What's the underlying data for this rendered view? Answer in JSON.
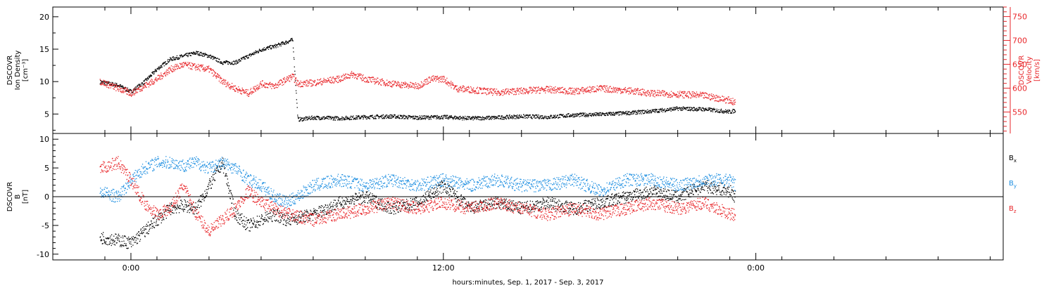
{
  "colors": {
    "black": "#000000",
    "red": "#e8262a",
    "blue": "#1e8fe1"
  },
  "chart_data": [
    {
      "type": "scatter",
      "title": "",
      "x_axis": {
        "label": "hours:minutes, Sep.  1, 2017 - Sep.  3, 2017",
        "unit": "hours since 2017-09-01 00:00",
        "range_hours": [
          -3,
          33.5
        ],
        "tick_labels": [
          {
            "hours": 0,
            "label": "0:00"
          },
          {
            "hours": 12,
            "label": "12:00"
          },
          {
            "hours": 24,
            "label": "0:00"
          }
        ],
        "minor_tick_every_hours": 2
      },
      "y_axis_left": {
        "label_lines": [
          "DSCOVR",
          "Ion Density",
          "[cm⁻³]"
        ],
        "range": [
          2,
          21.5
        ],
        "ticks": [
          5,
          10,
          15,
          20
        ]
      },
      "y_axis_right": {
        "label_lines": [
          "DSCOVR",
          "Velocity",
          "[km/s]"
        ],
        "range": [
          505,
          770
        ],
        "ticks": [
          550,
          600,
          650,
          700,
          750
        ],
        "color": "#e8262a"
      },
      "series": [
        {
          "name": "Ion Density",
          "axis": "left",
          "color": "#000000",
          "points_hours": [
            -1.2,
            -0.5,
            0,
            0.5,
            1,
            1.5,
            2,
            2.5,
            3,
            3.5,
            4,
            4.5,
            5,
            5.5,
            6,
            6.2,
            6.4,
            7,
            8,
            9,
            10,
            11,
            12,
            13,
            14,
            15,
            16,
            17,
            18,
            19,
            20,
            21,
            22,
            23,
            23.2
          ],
          "values": [
            10,
            9.5,
            8.5,
            10,
            12,
            13.5,
            14,
            14.5,
            14,
            13,
            13,
            14,
            15,
            15.5,
            16.2,
            16.5,
            4.2,
            4.5,
            4.4,
            4.6,
            4.7,
            4.5,
            4.6,
            4.4,
            4.5,
            4.7,
            4.6,
            4.9,
            5.0,
            5.2,
            5.5,
            5.9,
            5.8,
            5.4,
            5.6
          ]
        },
        {
          "name": "Velocity",
          "axis": "right",
          "color": "#e8262a",
          "points_hours": [
            -1.2,
            -0.5,
            0,
            0.5,
            1,
            1.5,
            2,
            2.5,
            3,
            3.5,
            4,
            4.5,
            5,
            5.5,
            6,
            6.2,
            6.4,
            7,
            8,
            8.5,
            9,
            10,
            11,
            11.5,
            12,
            12.5,
            13,
            14,
            15,
            16,
            17,
            18,
            19,
            20,
            21,
            22,
            23,
            23.2
          ],
          "values": [
            615,
            600,
            590,
            605,
            620,
            640,
            650,
            645,
            640,
            615,
            600,
            590,
            610,
            605,
            620,
            625,
            610,
            612,
            620,
            630,
            620,
            610,
            605,
            620,
            620,
            600,
            598,
            592,
            595,
            598,
            594,
            600,
            596,
            590,
            588,
            585,
            575,
            570
          ]
        }
      ]
    },
    {
      "type": "scatter",
      "title": "",
      "x_axis": {
        "label": "hours:minutes, Sep.  1, 2017 - Sep.  3, 2017",
        "unit": "hours since 2017-09-01 00:00",
        "range_hours": [
          -3,
          33.5
        ]
      },
      "y_axis_left": {
        "label_lines": [
          "DSCOVR",
          "B",
          "[nT]"
        ],
        "range": [
          -11,
          11
        ],
        "ticks": [
          -10,
          -5,
          0,
          5,
          10
        ]
      },
      "zero_line": true,
      "legend": [
        {
          "name": "Bx",
          "color": "#000000"
        },
        {
          "name": "By",
          "color": "#1e8fe1"
        },
        {
          "name": "Bz",
          "color": "#e8262a"
        }
      ],
      "series": [
        {
          "name": "Bx",
          "color": "#000000",
          "points_hours": [
            -1.2,
            -0.5,
            0,
            0.5,
            1,
            1.5,
            2,
            2.5,
            3,
            3.5,
            4,
            4.5,
            5,
            5.5,
            6,
            7,
            8,
            9,
            10,
            11,
            12,
            13,
            14,
            15,
            16,
            17,
            18,
            19,
            20,
            21,
            22,
            23,
            23.2
          ],
          "values": [
            -7,
            -7.5,
            -8,
            -6,
            -4,
            -2,
            -1.5,
            -2,
            2,
            6,
            -3,
            -5,
            -4,
            -3,
            -4,
            -3,
            -1,
            0,
            -2,
            -1,
            2,
            -2,
            -1,
            -2,
            -1,
            -2,
            -1,
            0,
            1,
            0,
            2,
            1,
            0
          ]
        },
        {
          "name": "By",
          "color": "#1e8fe1",
          "points_hours": [
            -1.2,
            -0.5,
            0,
            0.5,
            1,
            1.5,
            2,
            2.5,
            3,
            3.5,
            4,
            4.5,
            5,
            5.5,
            6,
            7,
            8,
            9,
            10,
            11,
            12,
            13,
            14,
            15,
            16,
            17,
            18,
            19,
            20,
            21,
            22,
            23,
            23.2
          ],
          "values": [
            1,
            0,
            3,
            5,
            6,
            6,
            5.5,
            6,
            5,
            6,
            5,
            3,
            2,
            0,
            -1,
            2,
            3,
            2,
            3,
            2,
            3,
            2,
            3,
            2,
            2,
            3,
            1,
            3,
            3,
            2,
            3,
            3,
            2
          ]
        },
        {
          "name": "Bz",
          "color": "#e8262a",
          "points_hours": [
            -1.2,
            -0.5,
            0,
            0.5,
            1,
            1.5,
            2,
            2.5,
            3,
            3.5,
            4,
            4.5,
            5,
            5.5,
            6,
            7,
            8,
            9,
            10,
            11,
            12,
            13,
            14,
            15,
            16,
            17,
            18,
            19,
            20,
            21,
            22,
            23,
            23.2
          ],
          "values": [
            5,
            6,
            3,
            -1,
            -3,
            -2,
            2,
            -3,
            -6,
            -4,
            -2,
            1,
            -1,
            -2,
            -3,
            -4,
            -3,
            -2,
            -1,
            -2,
            -1,
            -2,
            -1,
            -2,
            -3,
            -2,
            -3,
            -2,
            -1,
            -2,
            -1,
            -3,
            -3
          ]
        }
      ]
    }
  ]
}
